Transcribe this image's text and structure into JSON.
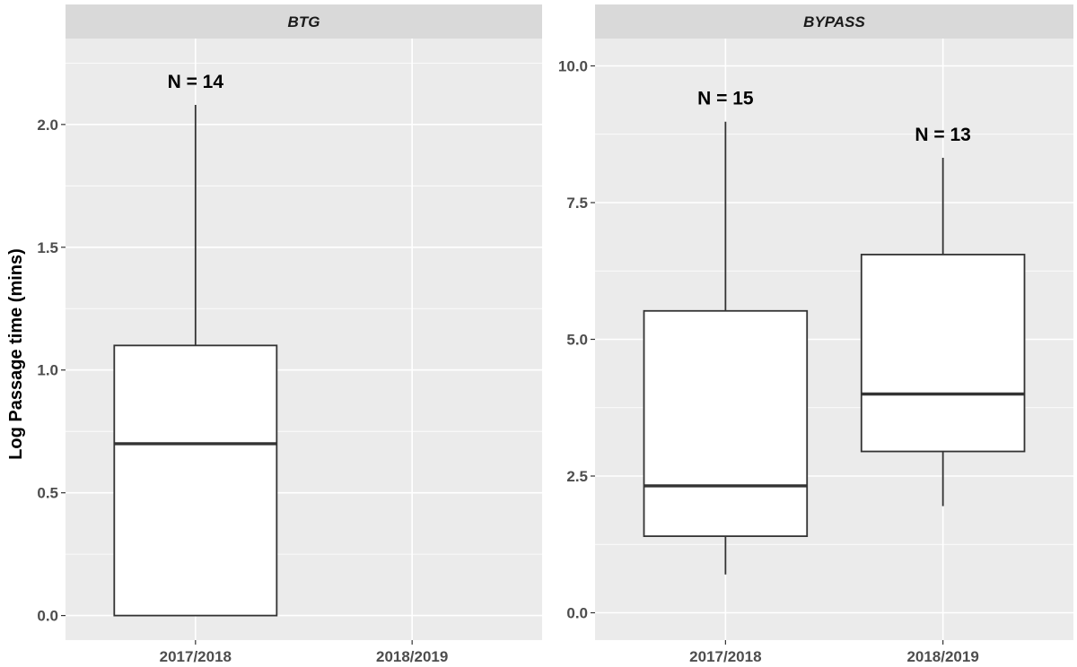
{
  "chart_data": {
    "type": "boxplot",
    "ylabel": "Log Passage time (mins)",
    "categories": [
      "2017/2018",
      "2018/2019"
    ],
    "panels": [
      {
        "name": "BTG",
        "ylim": [
          -0.1,
          2.35
        ],
        "yticks": [
          0.0,
          0.5,
          1.0,
          1.5,
          2.0
        ],
        "ytick_labels": [
          "0.0",
          "0.5",
          "1.0",
          "1.5",
          "2.0"
        ],
        "boxes": [
          {
            "category": "2017/2018",
            "min": 0.0,
            "q1": 0.0,
            "median": 0.7,
            "q3": 1.1,
            "max": 2.08,
            "n_label": "N = 14"
          }
        ]
      },
      {
        "name": "BYPASS",
        "ylim": [
          -0.5,
          10.5
        ],
        "yticks": [
          0.0,
          2.5,
          5.0,
          7.5,
          10.0
        ],
        "ytick_labels": [
          "0.0",
          "2.5",
          "5.0",
          "7.5",
          "10.0"
        ],
        "boxes": [
          {
            "category": "2017/2018",
            "min": 0.7,
            "q1": 1.4,
            "median": 2.32,
            "q3": 5.52,
            "max": 8.98,
            "n_label": "N = 15"
          },
          {
            "category": "2018/2019",
            "min": 1.95,
            "q1": 2.95,
            "median": 4.0,
            "q3": 6.55,
            "max": 8.32,
            "n_label": "N = 13"
          }
        ]
      }
    ],
    "grid": true,
    "legend": "none",
    "colors": {
      "panel_bg": "#ebebeb",
      "strip_bg": "#d9d9d9",
      "box_fill": "#ffffff",
      "box_line": "#333333"
    }
  }
}
